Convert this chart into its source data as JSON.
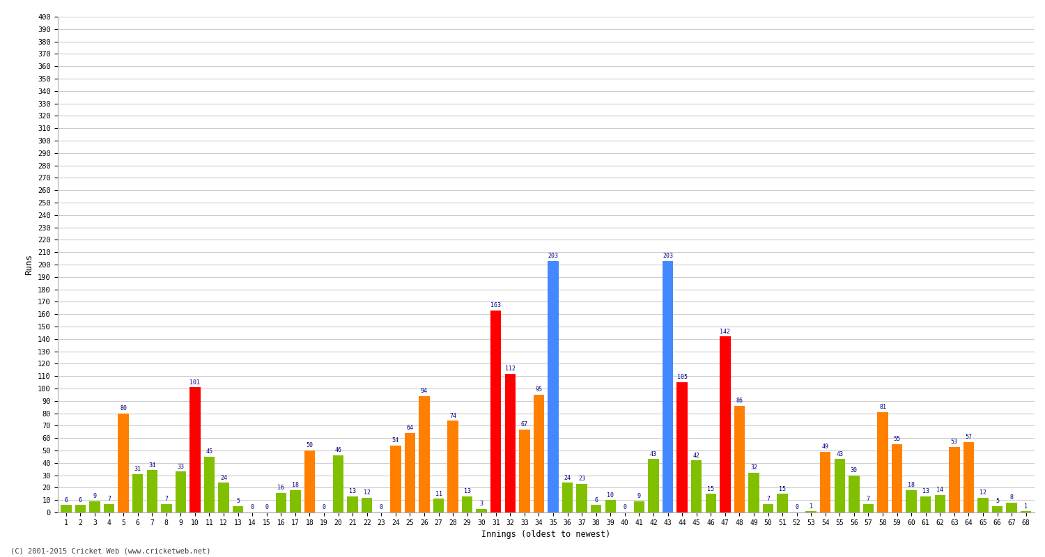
{
  "innings": [
    1,
    2,
    3,
    4,
    5,
    6,
    7,
    8,
    9,
    10,
    11,
    12,
    13,
    14,
    15,
    16,
    17,
    18,
    19,
    20,
    21,
    22,
    23,
    24,
    25,
    26,
    27,
    28,
    29,
    30,
    31,
    32,
    33,
    34,
    35,
    36,
    37,
    38,
    39,
    40,
    41,
    42,
    43,
    44,
    45,
    46,
    47,
    48,
    49,
    50,
    51,
    52,
    53,
    54,
    55,
    56,
    57,
    58,
    59,
    60,
    61,
    62,
    63,
    64,
    65,
    66,
    67,
    68
  ],
  "scores": [
    6,
    6,
    9,
    7,
    80,
    31,
    34,
    7,
    33,
    101,
    45,
    24,
    5,
    0,
    0,
    16,
    18,
    50,
    0,
    46,
    13,
    12,
    0,
    54,
    64,
    94,
    11,
    74,
    13,
    3,
    163,
    112,
    67,
    95,
    203,
    24,
    23,
    6,
    10,
    0,
    9,
    43,
    203,
    105,
    42,
    15,
    142,
    86,
    32,
    7,
    15,
    0,
    1,
    49,
    43,
    30,
    7,
    81,
    55,
    18,
    13,
    14,
    53,
    57,
    12,
    5,
    8,
    1
  ],
  "colors": [
    "#80c000",
    "#80c000",
    "#80c000",
    "#80c000",
    "#ff8000",
    "#80c000",
    "#80c000",
    "#80c000",
    "#80c000",
    "#ff0000",
    "#80c000",
    "#80c000",
    "#80c000",
    "#80c000",
    "#80c000",
    "#80c000",
    "#80c000",
    "#ff8000",
    "#80c000",
    "#80c000",
    "#80c000",
    "#80c000",
    "#80c000",
    "#ff8000",
    "#ff8000",
    "#ff8000",
    "#80c000",
    "#ff8000",
    "#80c000",
    "#80c000",
    "#ff0000",
    "#ff0000",
    "#ff8000",
    "#ff8000",
    "#4488ff",
    "#80c000",
    "#80c000",
    "#80c000",
    "#80c000",
    "#80c000",
    "#80c000",
    "#80c000",
    "#4488ff",
    "#ff0000",
    "#80c000",
    "#80c000",
    "#ff0000",
    "#ff8000",
    "#80c000",
    "#80c000",
    "#80c000",
    "#80c000",
    "#80c000",
    "#ff8000",
    "#80c000",
    "#80c000",
    "#80c000",
    "#ff8000",
    "#ff8000",
    "#80c000",
    "#80c000",
    "#80c000",
    "#ff8000",
    "#ff8000",
    "#80c000",
    "#80c000",
    "#80c000",
    "#80c000"
  ],
  "ylabel": "Runs",
  "xlabel": "Innings (oldest to newest)",
  "ylim": [
    0,
    400
  ],
  "yticks": [
    0,
    10,
    20,
    30,
    40,
    50,
    60,
    70,
    80,
    90,
    100,
    110,
    120,
    130,
    140,
    150,
    160,
    170,
    180,
    190,
    200,
    210,
    220,
    230,
    240,
    250,
    260,
    270,
    280,
    290,
    300,
    310,
    320,
    330,
    340,
    350,
    360,
    370,
    380,
    390,
    400
  ],
  "bg_color": "#ffffff",
  "grid_color": "#cccccc",
  "value_label_color": "#000080",
  "footer": "(C) 2001-2015 Cricket Web (www.cricketweb.net)"
}
